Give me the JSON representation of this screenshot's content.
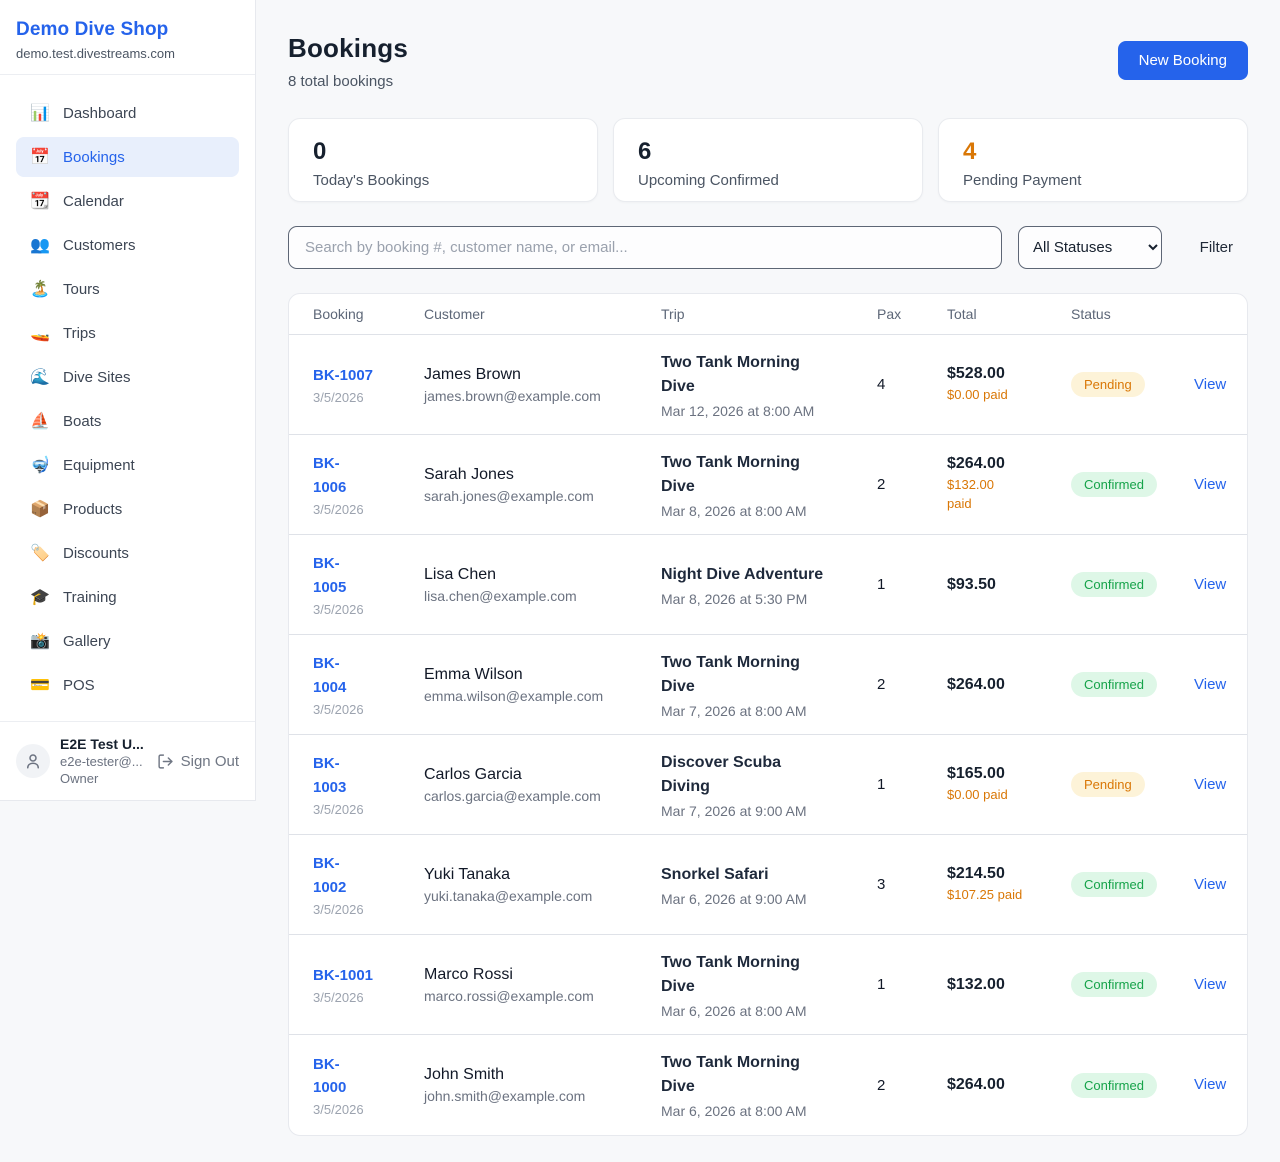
{
  "sidebar": {
    "brand": "Demo Dive Shop",
    "domain": "demo.test.divestreams.com",
    "items": [
      {
        "icon": "bar-chart-icon",
        "glyph": "📊",
        "label": "Dashboard",
        "active": false
      },
      {
        "icon": "calendar-icon",
        "glyph": "📅",
        "label": "Bookings",
        "active": true
      },
      {
        "icon": "tear-off-calendar-icon",
        "glyph": "📆",
        "label": "Calendar",
        "active": false
      },
      {
        "icon": "people-icon",
        "glyph": "👥",
        "label": "Customers",
        "active": false
      },
      {
        "icon": "desert-island-icon",
        "glyph": "🏝️",
        "label": "Tours",
        "active": false
      },
      {
        "icon": "speedboat-icon",
        "glyph": "🚤",
        "label": "Trips",
        "active": false
      },
      {
        "icon": "water-wave-icon",
        "glyph": "🌊",
        "label": "Dive Sites",
        "active": false
      },
      {
        "icon": "sailboat-icon",
        "glyph": "⛵",
        "label": "Boats",
        "active": false
      },
      {
        "icon": "diving-mask-icon",
        "glyph": "🤿",
        "label": "Equipment",
        "active": false
      },
      {
        "icon": "package-icon",
        "glyph": "📦",
        "label": "Products",
        "active": false
      },
      {
        "icon": "label-tag-icon",
        "glyph": "🏷️",
        "label": "Discounts",
        "active": false
      },
      {
        "icon": "graduation-cap-icon",
        "glyph": "🎓",
        "label": "Training",
        "active": false
      },
      {
        "icon": "camera-flash-icon",
        "glyph": "📸",
        "label": "Gallery",
        "active": false
      },
      {
        "icon": "credit-card-icon",
        "glyph": "💳",
        "label": "POS",
        "active": false
      }
    ],
    "user": {
      "name": "E2E Test U...",
      "email": "e2e-tester@...",
      "role": "Owner",
      "sign_out_label": "Sign Out"
    }
  },
  "header": {
    "title": "Bookings",
    "subtitle": "8 total bookings",
    "new_booking_label": "New Booking"
  },
  "stats": [
    {
      "value": "0",
      "label": "Today's Bookings",
      "value_color": "#16202e"
    },
    {
      "value": "6",
      "label": "Upcoming Confirmed",
      "value_color": "#16202e"
    },
    {
      "value": "4",
      "label": "Pending Payment",
      "value_color": "#d97706"
    }
  ],
  "filters": {
    "search_placeholder": "Search by booking #, customer name, or email...",
    "status_selected": "All Statuses",
    "filter_label": "Filter"
  },
  "table": {
    "columns": [
      "Booking",
      "Customer",
      "Trip",
      "Pax",
      "Total",
      "Status"
    ],
    "view_label": "View",
    "status_styles": {
      "Pending": {
        "bg": "#fdf3d8",
        "text": "#d97706"
      },
      "Confirmed": {
        "bg": "#def7e7",
        "text": "#16a34a"
      }
    },
    "rows": [
      {
        "id": "BK-1007",
        "date": "3/5/2026",
        "customer": "James Brown",
        "email": "james.brown@example.com",
        "trip": "Two Tank Morning\nDive",
        "when": "Mar 12, 2026 at 8:00 AM",
        "pax": "4",
        "total": "$528.00",
        "paid": "$0.00 paid",
        "status": "Pending"
      },
      {
        "id": "BK-\n1006",
        "date": "3/5/2026",
        "customer": "Sarah Jones",
        "email": "sarah.jones@example.com",
        "trip": "Two Tank Morning\nDive",
        "when": "Mar 8, 2026 at 8:00 AM",
        "pax": "2",
        "total": "$264.00",
        "paid": "$132.00\npaid",
        "status": "Confirmed"
      },
      {
        "id": "BK-\n1005",
        "date": "3/5/2026",
        "customer": "Lisa Chen",
        "email": "lisa.chen@example.com",
        "trip": "Night Dive Adventure",
        "when": "Mar 8, 2026 at 5:30 PM",
        "pax": "1",
        "total": "$93.50",
        "paid": null,
        "status": "Confirmed"
      },
      {
        "id": "BK-\n1004",
        "date": "3/5/2026",
        "customer": "Emma Wilson",
        "email": "emma.wilson@example.com",
        "trip": "Two Tank Morning\nDive",
        "when": "Mar 7, 2026 at 8:00 AM",
        "pax": "2",
        "total": "$264.00",
        "paid": null,
        "status": "Confirmed"
      },
      {
        "id": "BK-\n1003",
        "date": "3/5/2026",
        "customer": "Carlos Garcia",
        "email": "carlos.garcia@example.com",
        "trip": "Discover Scuba\nDiving",
        "when": "Mar 7, 2026 at 9:00 AM",
        "pax": "1",
        "total": "$165.00",
        "paid": "$0.00 paid",
        "status": "Pending"
      },
      {
        "id": "BK-\n1002",
        "date": "3/5/2026",
        "customer": "Yuki Tanaka",
        "email": "yuki.tanaka@example.com",
        "trip": "Snorkel Safari",
        "when": "Mar 6, 2026 at 9:00 AM",
        "pax": "3",
        "total": "$214.50",
        "paid": "$107.25 paid",
        "status": "Confirmed"
      },
      {
        "id": "BK-1001",
        "date": "3/5/2026",
        "customer": "Marco Rossi",
        "email": "marco.rossi@example.com",
        "trip": "Two Tank Morning\nDive",
        "when": "Mar 6, 2026 at 8:00 AM",
        "pax": "1",
        "total": "$132.00",
        "paid": null,
        "status": "Confirmed"
      },
      {
        "id": "BK-\n1000",
        "date": "3/5/2026",
        "customer": "John Smith",
        "email": "john.smith@example.com",
        "trip": "Two Tank Morning\nDive",
        "when": "Mar 6, 2026 at 8:00 AM",
        "pax": "2",
        "total": "$264.00",
        "paid": null,
        "status": "Confirmed"
      }
    ]
  },
  "colors": {
    "accent": "#2563eb",
    "paid_amount": "#d97706"
  }
}
